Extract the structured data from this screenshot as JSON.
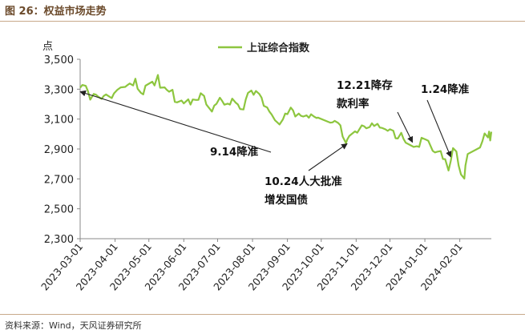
{
  "figure": {
    "title": "图 26：权益市场走势",
    "source": "资料来源：Wind，天风证券研究所"
  },
  "colors": {
    "line": "#8dc63f",
    "axis": "#888888",
    "rule": "#c8a98a"
  },
  "chart_data": {
    "type": "line",
    "ylabel": "点",
    "ylim": [
      2300,
      3500
    ],
    "yticks": [
      "3,500",
      "3,300",
      "3,100",
      "2,900",
      "2,700",
      "2,500",
      "2,300"
    ],
    "ytick_values": [
      3500,
      3300,
      3100,
      2900,
      2700,
      2500,
      2300
    ],
    "xlim": [
      "2023-03-01",
      "2024-02-29"
    ],
    "xticks": [
      "2023-03-01",
      "2023-04-01",
      "2023-05-01",
      "2023-06-01",
      "2023-07-01",
      "2023-08-01",
      "2023-09-01",
      "2023-10-01",
      "2023-11-01",
      "2023-12-01",
      "2024-01-01",
      "2024-02-01"
    ],
    "legend": {
      "position": "top-center"
    },
    "series": [
      {
        "name": "上证综合指数",
        "points": [
          [
            "2023-03-01",
            3310
          ],
          [
            "2023-03-03",
            3328
          ],
          [
            "2023-03-06",
            3322
          ],
          [
            "2023-03-08",
            3285
          ],
          [
            "2023-03-10",
            3230
          ],
          [
            "2023-03-13",
            3268
          ],
          [
            "2023-03-15",
            3263
          ],
          [
            "2023-03-17",
            3250
          ],
          [
            "2023-03-20",
            3235
          ],
          [
            "2023-03-22",
            3255
          ],
          [
            "2023-03-24",
            3265
          ],
          [
            "2023-03-27",
            3250
          ],
          [
            "2023-03-29",
            3240
          ],
          [
            "2023-03-31",
            3272
          ],
          [
            "2023-04-03",
            3296
          ],
          [
            "2023-04-06",
            3312
          ],
          [
            "2023-04-10",
            3315
          ],
          [
            "2023-04-12",
            3327
          ],
          [
            "2023-04-14",
            3338
          ],
          [
            "2023-04-17",
            3325
          ],
          [
            "2023-04-19",
            3370
          ],
          [
            "2023-04-21",
            3303
          ],
          [
            "2023-04-24",
            3275
          ],
          [
            "2023-04-26",
            3265
          ],
          [
            "2023-04-28",
            3323
          ],
          [
            "2023-05-04",
            3350
          ],
          [
            "2023-05-06",
            3325
          ],
          [
            "2023-05-09",
            3395
          ],
          [
            "2023-05-11",
            3310
          ],
          [
            "2023-05-15",
            3312
          ],
          [
            "2023-05-17",
            3295
          ],
          [
            "2023-05-19",
            3283
          ],
          [
            "2023-05-22",
            3296
          ],
          [
            "2023-05-24",
            3215
          ],
          [
            "2023-05-26",
            3212
          ],
          [
            "2023-05-30",
            3224
          ],
          [
            "2023-06-01",
            3205
          ],
          [
            "2023-06-05",
            3232
          ],
          [
            "2023-06-07",
            3197
          ],
          [
            "2023-06-09",
            3231
          ],
          [
            "2023-06-12",
            3228
          ],
          [
            "2023-06-14",
            3229
          ],
          [
            "2023-06-16",
            3273
          ],
          [
            "2023-06-19",
            3255
          ],
          [
            "2023-06-21",
            3198
          ],
          [
            "2023-06-26",
            3150
          ],
          [
            "2023-06-28",
            3190
          ],
          [
            "2023-06-30",
            3202
          ],
          [
            "2023-07-03",
            3243
          ],
          [
            "2023-07-05",
            3222
          ],
          [
            "2023-07-07",
            3196
          ],
          [
            "2023-07-10",
            3203
          ],
          [
            "2023-07-12",
            3197
          ],
          [
            "2023-07-14",
            3237
          ],
          [
            "2023-07-17",
            3210
          ],
          [
            "2023-07-19",
            3198
          ],
          [
            "2023-07-21",
            3167
          ],
          [
            "2023-07-24",
            3164
          ],
          [
            "2023-07-26",
            3231
          ],
          [
            "2023-07-28",
            3275
          ],
          [
            "2023-07-31",
            3291
          ],
          [
            "2023-08-02",
            3262
          ],
          [
            "2023-08-04",
            3288
          ],
          [
            "2023-08-07",
            3268
          ],
          [
            "2023-08-09",
            3244
          ],
          [
            "2023-08-11",
            3189
          ],
          [
            "2023-08-14",
            3178
          ],
          [
            "2023-08-16",
            3150
          ],
          [
            "2023-08-18",
            3131
          ],
          [
            "2023-08-21",
            3092
          ],
          [
            "2023-08-23",
            3078
          ],
          [
            "2023-08-25",
            3064
          ],
          [
            "2023-08-28",
            3098
          ],
          [
            "2023-08-30",
            3137
          ],
          [
            "2023-09-01",
            3133
          ],
          [
            "2023-09-04",
            3177
          ],
          [
            "2023-09-06",
            3158
          ],
          [
            "2023-09-08",
            3117
          ],
          [
            "2023-09-11",
            3137
          ],
          [
            "2023-09-13",
            3122
          ],
          [
            "2023-09-15",
            3117
          ],
          [
            "2023-09-18",
            3125
          ],
          [
            "2023-09-20",
            3109
          ],
          [
            "2023-09-22",
            3132
          ],
          [
            "2023-09-25",
            3115
          ],
          [
            "2023-09-27",
            3107
          ],
          [
            "2023-09-28",
            3110
          ],
          [
            "2023-10-09",
            3076
          ],
          [
            "2023-10-11",
            3078
          ],
          [
            "2023-10-13",
            3088
          ],
          [
            "2023-10-16",
            3074
          ],
          [
            "2023-10-18",
            3058
          ],
          [
            "2023-10-20",
            2983
          ],
          [
            "2023-10-23",
            2939
          ],
          [
            "2023-10-24",
            2962
          ],
          [
            "2023-10-26",
            2988
          ],
          [
            "2023-10-31",
            3018
          ],
          [
            "2023-11-02",
            3009
          ],
          [
            "2023-11-06",
            3058
          ],
          [
            "2023-11-08",
            3052
          ],
          [
            "2023-11-10",
            3038
          ],
          [
            "2023-11-13",
            3047
          ],
          [
            "2023-11-15",
            3072
          ],
          [
            "2023-11-17",
            3054
          ],
          [
            "2023-11-20",
            3068
          ],
          [
            "2023-11-22",
            3043
          ],
          [
            "2023-11-24",
            3041
          ],
          [
            "2023-11-27",
            3031
          ],
          [
            "2023-11-29",
            3021
          ],
          [
            "2023-12-01",
            3032
          ],
          [
            "2023-12-04",
            3022
          ],
          [
            "2023-12-06",
            2972
          ],
          [
            "2023-12-08",
            2970
          ],
          [
            "2023-12-11",
            3008
          ],
          [
            "2023-12-13",
            2968
          ],
          [
            "2023-12-15",
            2942
          ],
          [
            "2023-12-18",
            2930
          ],
          [
            "2023-12-21",
            2918
          ],
          [
            "2023-12-22",
            2914
          ],
          [
            "2023-12-25",
            2918
          ],
          [
            "2023-12-27",
            2914
          ],
          [
            "2023-12-29",
            2975
          ],
          [
            "2024-01-02",
            2962
          ],
          [
            "2024-01-04",
            2955
          ],
          [
            "2024-01-08",
            2887
          ],
          [
            "2024-01-10",
            2877
          ],
          [
            "2024-01-12",
            2882
          ],
          [
            "2024-01-15",
            2886
          ],
          [
            "2024-01-17",
            2833
          ],
          [
            "2024-01-19",
            2832
          ],
          [
            "2024-01-22",
            2756
          ],
          [
            "2024-01-24",
            2820
          ],
          [
            "2024-01-26",
            2906
          ],
          [
            "2024-01-29",
            2883
          ],
          [
            "2024-01-31",
            2789
          ],
          [
            "2024-02-02",
            2730
          ],
          [
            "2024-02-05",
            2702
          ],
          [
            "2024-02-06",
            2789
          ],
          [
            "2024-02-08",
            2866
          ],
          [
            "2024-02-19",
            2910
          ],
          [
            "2024-02-21",
            2951
          ],
          [
            "2024-02-23",
            3004
          ],
          [
            "2024-02-26",
            2977
          ],
          [
            "2024-02-27",
            3016
          ],
          [
            "2024-02-28",
            2957
          ],
          [
            "2024-02-29",
            3015
          ]
        ]
      }
    ],
    "annotations": [
      {
        "lines": [
          "9.14降准"
        ],
        "point": "2023-09-14"
      },
      {
        "lines": [
          "10.24人大批准",
          "增发国债"
        ],
        "point": "2023-10-24"
      },
      {
        "lines": [
          "12.21降存",
          "款利率"
        ],
        "point": "2023-12-21"
      },
      {
        "lines": [
          "1.24降准"
        ],
        "point": "2024-01-24"
      }
    ]
  }
}
